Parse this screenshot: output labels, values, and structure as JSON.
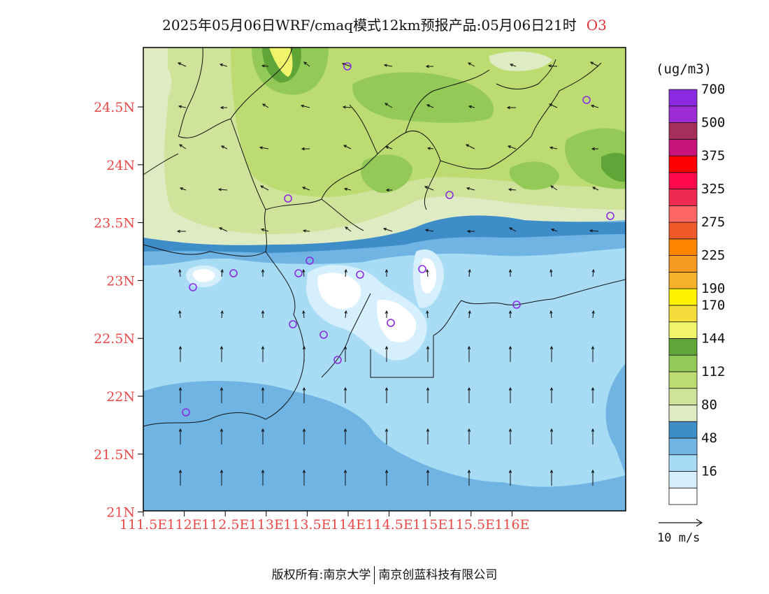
{
  "title": {
    "text": "2025年05月06日WRF/cmaq模式12km预报产品:05月06日21时",
    "species": "O3"
  },
  "map": {
    "lat_ticks": [
      "24.5N",
      "24N",
      "23.5N",
      "23N",
      "22.5N",
      "22N",
      "21.5N",
      "21N"
    ],
    "lon_ticks": [
      "111.5E",
      "112E",
      "112.5E",
      "113E",
      "113.5E",
      "114E",
      "114.5E",
      "115E",
      "115.5E",
      "116E"
    ],
    "tick_color": "#e84a4a",
    "station_color": "#8a2be2"
  },
  "legend": {
    "unit": "(ug/m3)",
    "bins": [
      {
        "color": "#ffffff"
      },
      {
        "color": "#d6effc",
        "label": "16"
      },
      {
        "color": "#a8dcf5"
      },
      {
        "color": "#6fb4e2",
        "label": "48"
      },
      {
        "color": "#3e8cc8"
      },
      {
        "color": "#dfebc2",
        "label": "80"
      },
      {
        "color": "#cfe39a"
      },
      {
        "color": "#bcdc72",
        "label": "112"
      },
      {
        "color": "#93c957"
      },
      {
        "color": "#5fa537",
        "label": "144"
      },
      {
        "color": "#f1f46b"
      },
      {
        "color": "#f4dc3a",
        "label": "170"
      },
      {
        "color": "#fff200",
        "label": "190"
      },
      {
        "color": "#f6b12a"
      },
      {
        "color": "#f59a22",
        "label": "225"
      },
      {
        "color": "#ff8400"
      },
      {
        "color": "#ee5a2a",
        "label": "275"
      },
      {
        "color": "#ff6666"
      },
      {
        "color": "#ee2a52",
        "label": "325"
      },
      {
        "color": "#ff0a4a"
      },
      {
        "color": "#ff0000",
        "label": "375"
      },
      {
        "color": "#c8137a"
      },
      {
        "color": "#a52e5a",
        "label": "500"
      },
      {
        "color": "#9d2bd6"
      },
      {
        "color": "#8a2be2",
        "label": "700"
      }
    ]
  },
  "wind_key": {
    "label": "10 m/s"
  },
  "copyright": {
    "left": "版权所有:南京大学",
    "right": "南京创蓝科技有限公司"
  }
}
